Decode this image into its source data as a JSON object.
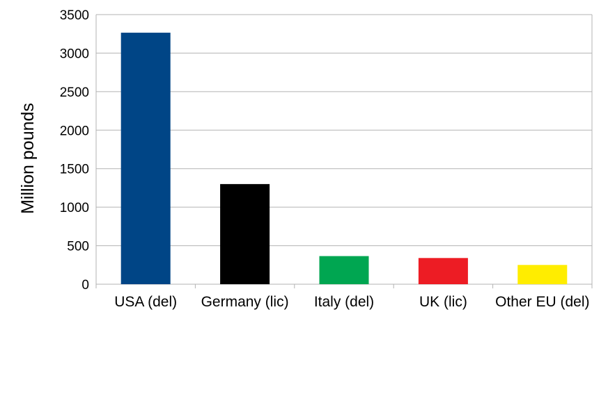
{
  "chart_data": {
    "type": "bar",
    "title": "",
    "xlabel": "",
    "ylabel": "Million pounds",
    "ylim": [
      0,
      3500
    ],
    "yticks": [
      0,
      500,
      1000,
      1500,
      2000,
      2500,
      3000,
      3500
    ],
    "grid": true,
    "legend": "none",
    "categories": [
      "USA (del)",
      "Germany (lic)",
      "Italy (del)",
      "UK (lic)",
      "Other EU (del)"
    ],
    "values": [
      3265,
      1300,
      365,
      340,
      250
    ],
    "colors": [
      "#004586",
      "#000000",
      "#00a651",
      "#ed1c24",
      "#ffed00"
    ]
  }
}
